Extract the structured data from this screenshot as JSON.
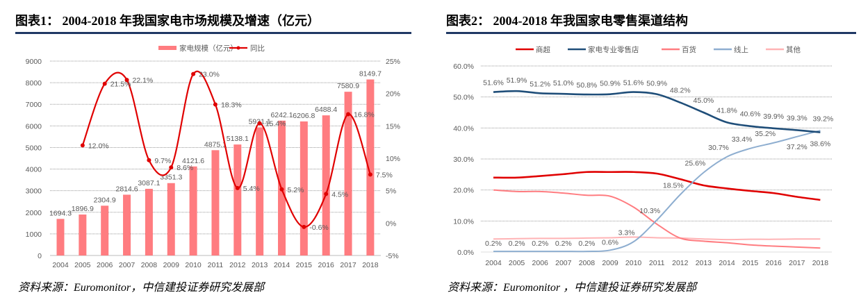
{
  "chart_data": [
    {
      "type": "bar+line",
      "title": "图表1：  2004-2018 年我国家电市场规模及增速（亿元）",
      "source": "资料来源：Euromonitor，中信建投证券研究发展部",
      "categories": [
        "2004",
        "2005",
        "2006",
        "2007",
        "2008",
        "2009",
        "2010",
        "2011",
        "2012",
        "2013",
        "2014",
        "2015",
        "2016",
        "2017",
        "2018"
      ],
      "series": [
        {
          "name": "家电规模（亿元）",
          "type": "bar",
          "axis": "left",
          "color": "#ff7c80",
          "values": [
            1694.3,
            1896.9,
            2304.9,
            2814.6,
            3087.1,
            3351.3,
            4121.6,
            4875.1,
            5138.1,
            5931.1,
            6242.1,
            6206.8,
            6488.4,
            7580.9,
            8149.7
          ],
          "labels": [
            "1694.3",
            "1896.9",
            "2304.9",
            "2814.6",
            "3087.1",
            "3351.3",
            "4121.6",
            "4875.1",
            "5138.1",
            "5931.1",
            "6242.1",
            "6206.8",
            "6488.4",
            "7580.9",
            "8149.7"
          ]
        },
        {
          "name": "同比",
          "type": "line",
          "axis": "right",
          "color": "#e00000",
          "values": [
            null,
            12.0,
            21.5,
            22.1,
            9.7,
            8.6,
            23.0,
            18.3,
            5.4,
            15.4,
            5.2,
            -0.6,
            4.5,
            16.8,
            7.5
          ],
          "labels": [
            "",
            "12.0%",
            "21.5%",
            "22.1%",
            "9.7%",
            "8.6%",
            "23.0%",
            "18.3%",
            "5.4%",
            "15.4%",
            "5.2%",
            "-0.6%",
            "4.5%",
            "16.8%",
            "7.5%"
          ]
        }
      ],
      "ylim": [
        0,
        9000
      ],
      "yticks": [
        "0",
        "1000",
        "2000",
        "3000",
        "4000",
        "5000",
        "6000",
        "7000",
        "8000",
        "9000"
      ],
      "y2lim": [
        -5,
        25
      ],
      "y2ticks": [
        "-5%",
        "0%",
        "5%",
        "10%",
        "15%",
        "20%",
        "25%"
      ],
      "grid": true,
      "legend": "top"
    },
    {
      "type": "line",
      "title": "图表2：  2004-2018 年我国家电零售渠道结构",
      "source": "资料来源：Euromonitor ，中信建投证券研究发展部",
      "categories": [
        "2004",
        "2005",
        "2006",
        "2007",
        "2008",
        "2009",
        "2010",
        "2011",
        "2012",
        "2013",
        "2014",
        "2015",
        "2016",
        "2017",
        "2018"
      ],
      "series": [
        {
          "name": "商超",
          "color": "#e00000",
          "values": [
            24.0,
            24.0,
            24.5,
            25.1,
            25.8,
            25.8,
            25.8,
            25.3,
            23.5,
            21.5,
            20.5,
            19.7,
            19.0,
            17.8,
            16.8
          ],
          "labels": []
        },
        {
          "name": "家电专业零售店",
          "color": "#1f4e79",
          "values": [
            51.6,
            51.9,
            51.2,
            51.0,
            50.8,
            50.9,
            51.6,
            50.9,
            48.2,
            45.0,
            41.8,
            40.6,
            39.9,
            39.3,
            38.6
          ],
          "labels": [
            "51.6%",
            "51.9%",
            "51.2%",
            "51.0%",
            "50.8%",
            "50.9%",
            "51.6%",
            "50.9%",
            "48.2%",
            "45.0%",
            "41.8%",
            "40.6%",
            "39.9%",
            "39.3%",
            "38.6%"
          ]
        },
        {
          "name": "百货",
          "color": "#ff7c80",
          "values": [
            20.0,
            19.5,
            19.5,
            19.0,
            18.3,
            18.0,
            14.5,
            9.0,
            4.5,
            3.5,
            3.0,
            2.3,
            1.9,
            1.6,
            1.3
          ],
          "labels": []
        },
        {
          "name": "线上",
          "color": "#8eaed0",
          "values": [
            0.2,
            0.2,
            0.2,
            0.2,
            0.2,
            0.6,
            3.3,
            10.3,
            18.5,
            25.6,
            30.7,
            33.4,
            35.2,
            37.2,
            39.2
          ],
          "labels": [
            "0.2%",
            "0.2%",
            "0.2%",
            "0.2%",
            "0.2%",
            "0.6%",
            "3.3%",
            "10.3%",
            "18.5%",
            "25.6%",
            "30.7%",
            "33.4%",
            "35.2%",
            "37.2%",
            "39.2%"
          ]
        },
        {
          "name": "其他",
          "color": "#ffb3b5",
          "values": [
            4.2,
            4.3,
            4.4,
            4.4,
            4.5,
            4.6,
            4.8,
            4.6,
            4.5,
            4.2,
            4.0,
            4.1,
            4.1,
            4.2,
            4.2
          ],
          "labels": []
        }
      ],
      "ylim": [
        0,
        60
      ],
      "yticks": [
        "0.0%",
        "10.0%",
        "20.0%",
        "30.0%",
        "40.0%",
        "50.0%",
        "60.0%"
      ],
      "grid": true,
      "legend": "top"
    }
  ]
}
